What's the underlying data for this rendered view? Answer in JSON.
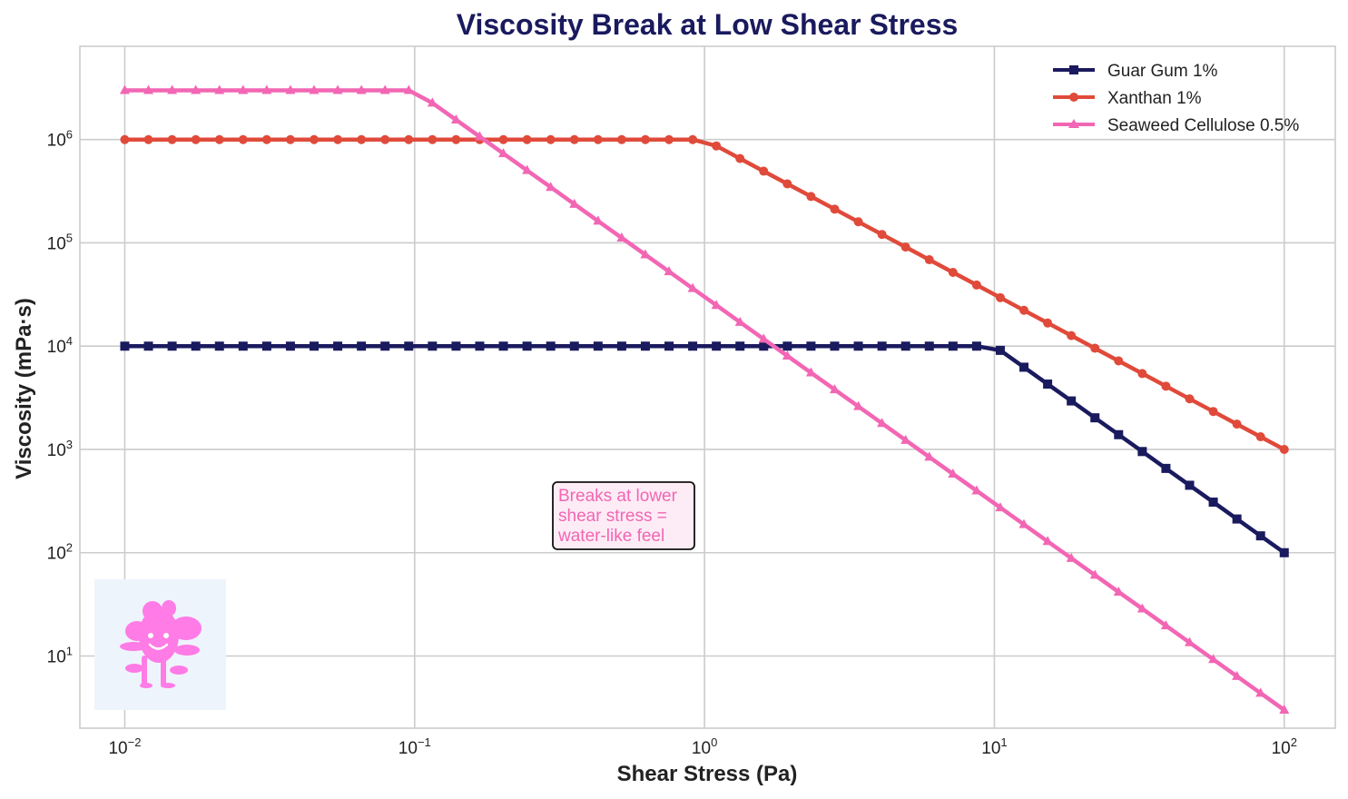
{
  "chart_data": {
    "type": "line",
    "title": "Viscosity Break at Low Shear Stress",
    "xlabel": "Shear Stress (Pa)",
    "ylabel": "Viscosity (mPa·s)",
    "xscale": "log",
    "yscale": "log",
    "xlim": [
      0.007,
      150
    ],
    "ylim": [
      2,
      8000000
    ],
    "grid": true,
    "legend_position": "top-right",
    "x_ticks": [
      {
        "base": "10",
        "exp": "−2",
        "value": 0.01
      },
      {
        "base": "10",
        "exp": "−1",
        "value": 0.1
      },
      {
        "base": "10",
        "exp": "0",
        "value": 1
      },
      {
        "base": "10",
        "exp": "1",
        "value": 10
      },
      {
        "base": "10",
        "exp": "2",
        "value": 100
      }
    ],
    "y_ticks": [
      {
        "base": "10",
        "exp": "1",
        "value": 10
      },
      {
        "base": "10",
        "exp": "2",
        "value": 100
      },
      {
        "base": "10",
        "exp": "3",
        "value": 1000
      },
      {
        "base": "10",
        "exp": "4",
        "value": 10000
      },
      {
        "base": "10",
        "exp": "5",
        "value": 100000
      },
      {
        "base": "10",
        "exp": "6",
        "value": 1000000
      }
    ],
    "series": [
      {
        "name": "Guar Gum 1%",
        "color": "#1a1a5e",
        "marker": "square",
        "x_range": [
          0.01,
          100
        ],
        "points": 50,
        "plateau": 10000,
        "break_at": 10,
        "end_value": 100
      },
      {
        "name": "Xanthan 1%",
        "color": "#e04a3a",
        "marker": "circle",
        "x_range": [
          0.01,
          100
        ],
        "points": 50,
        "plateau": 1000000,
        "break_at": 1,
        "end_value": 1000
      },
      {
        "name": "Seaweed Cellulose 0.5%",
        "color": "#f266b4",
        "marker": "triangle",
        "x_range": [
          0.01,
          100
        ],
        "points": 50,
        "plateau": 3000000,
        "break_at": 0.1,
        "end_value": 3
      }
    ],
    "annotation": {
      "lines": [
        "Breaks at lower",
        "shear stress =",
        "water-like feel"
      ],
      "color": "#f266b4",
      "anchor_x": 0.3,
      "anchor_y": 120
    },
    "logo": {
      "icon": "seaweed-mascot-icon",
      "color": "#ff7be6",
      "background": "#eef4fc"
    }
  }
}
